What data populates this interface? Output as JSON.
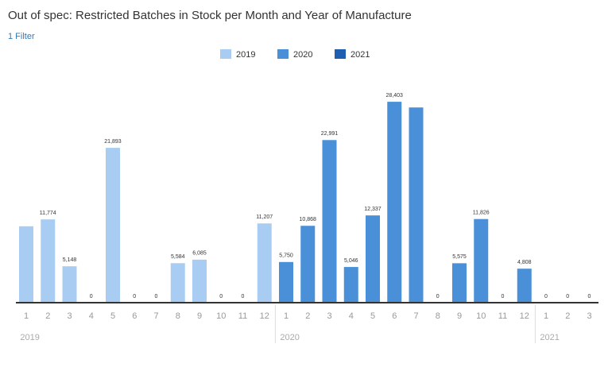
{
  "chart_data": {
    "type": "bar",
    "title": "Out of spec: Restricted Batches in Stock per Month and Year of Manufacture",
    "subtitle": "1 Filter",
    "series": [
      {
        "name": "2019",
        "color": "#a9cdf2",
        "categories": [
          "1",
          "2",
          "3",
          "4",
          "5",
          "6",
          "7",
          "8",
          "9",
          "10",
          "11",
          "12"
        ],
        "values": [
          10800,
          11774,
          5148,
          0,
          21893,
          0,
          0,
          5584,
          6085,
          0,
          0,
          11207
        ],
        "value_labels": [
          null,
          "11,774",
          "5,148",
          "0",
          "21,893",
          "0",
          "0",
          "5,584",
          "6,085",
          "0",
          "0",
          "11,207"
        ]
      },
      {
        "name": "2020",
        "color": "#4a90d9",
        "categories": [
          "1",
          "2",
          "3",
          "4",
          "5",
          "6",
          "7",
          "8",
          "9",
          "10",
          "11",
          "12"
        ],
        "values": [
          5750,
          10868,
          22991,
          5046,
          12337,
          28403,
          27600,
          0,
          5575,
          11826,
          0,
          4808
        ],
        "value_labels": [
          "5,750",
          "10,868",
          "22,991",
          "5,046",
          "12,337",
          "28,403",
          null,
          "0",
          "5,575",
          "11,826",
          "0",
          "4,808"
        ]
      },
      {
        "name": "2021",
        "color": "#1f5fb0",
        "categories": [
          "1",
          "2",
          "3"
        ],
        "values": [
          0,
          0,
          0
        ],
        "value_labels": [
          "0",
          "0",
          "0"
        ]
      }
    ]
  }
}
